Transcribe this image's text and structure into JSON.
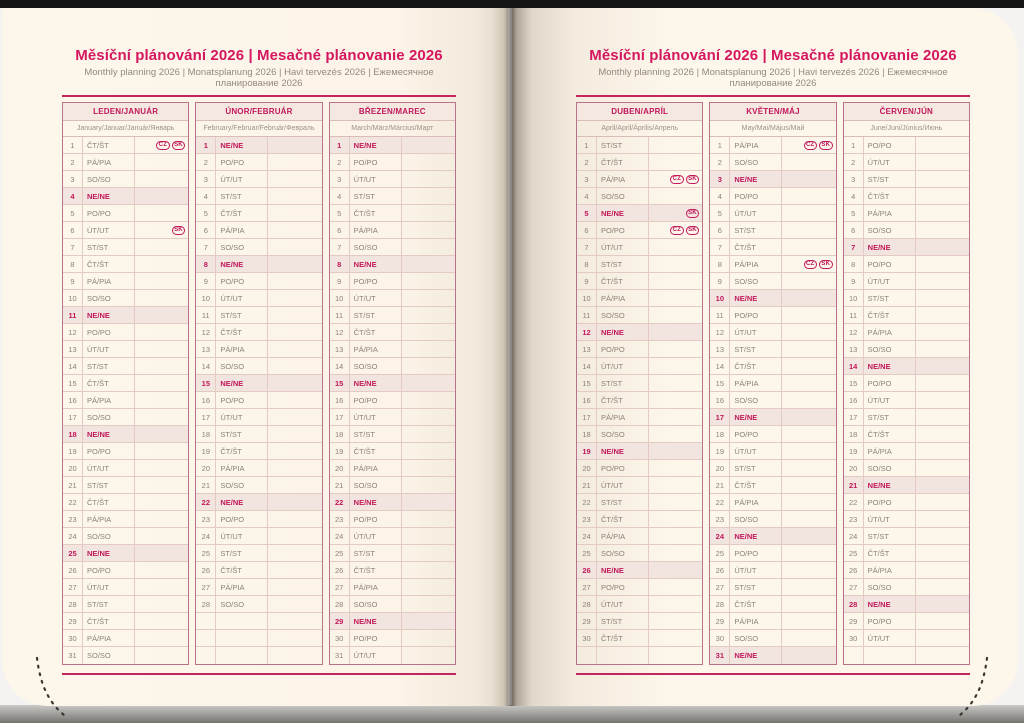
{
  "header": {
    "title": "Měsíční plánování 2026 | Mesačné plánovanie 2026",
    "subtitle": "Monthly planning 2026 | Monatsplanung 2026 | Havi tervezés 2026 | Ежемесячное планирование 2026"
  },
  "colors": {
    "accent": "#c2185b",
    "title": "#d4175f",
    "rule": "#c3255e",
    "sunday_row_bg": "#f2e4df",
    "header_band_bg": "#f4e8e1",
    "page_bg": "#fdf6ea",
    "day_text": "#8c8376"
  },
  "weekday_labels": [
    "PO/PO",
    "ÚT/UT",
    "ST/ST",
    "ČT/ŠT",
    "PÁ/PIA",
    "SO/SO",
    "NE/NE"
  ],
  "holiday_badges": [
    "CZ",
    "SK"
  ],
  "months": [
    {
      "id": "leden-januar",
      "name": "LEDEN/JANUÁR",
      "subtitle": "January/Januar/Január/Январь",
      "trailing_empty": 0,
      "days": [
        [
          1,
          "ČT/ŠT",
          [
            "CZ",
            "SK"
          ]
        ],
        [
          2,
          "PÁ/PIA"
        ],
        [
          3,
          "SO/SO"
        ],
        [
          4,
          "NE/NE"
        ],
        [
          5,
          "PO/PO"
        ],
        [
          6,
          "ÚT/UT",
          [
            "SK"
          ]
        ],
        [
          7,
          "ST/ST"
        ],
        [
          8,
          "ČT/ŠT"
        ],
        [
          9,
          "PÁ/PIA"
        ],
        [
          10,
          "SO/SO"
        ],
        [
          11,
          "NE/NE"
        ],
        [
          12,
          "PO/PO"
        ],
        [
          13,
          "ÚT/UT"
        ],
        [
          14,
          "ST/ST"
        ],
        [
          15,
          "ČT/ŠT"
        ],
        [
          16,
          "PÁ/PIA"
        ],
        [
          17,
          "SO/SO"
        ],
        [
          18,
          "NE/NE"
        ],
        [
          19,
          "PO/PO"
        ],
        [
          20,
          "ÚT/UT"
        ],
        [
          21,
          "ST/ST"
        ],
        [
          22,
          "ČT/ŠT"
        ],
        [
          23,
          "PÁ/PIA"
        ],
        [
          24,
          "SO/SO"
        ],
        [
          25,
          "NE/NE"
        ],
        [
          26,
          "PO/PO"
        ],
        [
          27,
          "ÚT/UT"
        ],
        [
          28,
          "ST/ST"
        ],
        [
          29,
          "ČT/ŠT"
        ],
        [
          30,
          "PÁ/PIA"
        ],
        [
          31,
          "SO/SO"
        ]
      ]
    },
    {
      "id": "unor-februar",
      "name": "ÚNOR/FEBRUÁR",
      "subtitle": "February/Februar/Február/Февраль",
      "trailing_empty": 3,
      "days": [
        [
          1,
          "NE/NE"
        ],
        [
          2,
          "PO/PO"
        ],
        [
          3,
          "ÚT/UT"
        ],
        [
          4,
          "ST/ST"
        ],
        [
          5,
          "ČT/ŠT"
        ],
        [
          6,
          "PÁ/PIA"
        ],
        [
          7,
          "SO/SO"
        ],
        [
          8,
          "NE/NE"
        ],
        [
          9,
          "PO/PO"
        ],
        [
          10,
          "ÚT/UT"
        ],
        [
          11,
          "ST/ST"
        ],
        [
          12,
          "ČT/ŠT"
        ],
        [
          13,
          "PÁ/PIA"
        ],
        [
          14,
          "SO/SO"
        ],
        [
          15,
          "NE/NE"
        ],
        [
          16,
          "PO/PO"
        ],
        [
          17,
          "ÚT/UT"
        ],
        [
          18,
          "ST/ST"
        ],
        [
          19,
          "ČT/ŠT"
        ],
        [
          20,
          "PÁ/PIA"
        ],
        [
          21,
          "SO/SO"
        ],
        [
          22,
          "NE/NE"
        ],
        [
          23,
          "PO/PO"
        ],
        [
          24,
          "ÚT/UT"
        ],
        [
          25,
          "ST/ST"
        ],
        [
          26,
          "ČT/ŠT"
        ],
        [
          27,
          "PÁ/PIA"
        ],
        [
          28,
          "SO/SO"
        ]
      ]
    },
    {
      "id": "brezen-marec",
      "name": "BŘEZEN/MAREC",
      "subtitle": "March/März/Március/Март",
      "trailing_empty": 0,
      "days": [
        [
          1,
          "NE/NE"
        ],
        [
          2,
          "PO/PO"
        ],
        [
          3,
          "ÚT/UT"
        ],
        [
          4,
          "ST/ST"
        ],
        [
          5,
          "ČT/ŠT"
        ],
        [
          6,
          "PÁ/PIA"
        ],
        [
          7,
          "SO/SO"
        ],
        [
          8,
          "NE/NE"
        ],
        [
          9,
          "PO/PO"
        ],
        [
          10,
          "ÚT/UT"
        ],
        [
          11,
          "ST/ST"
        ],
        [
          12,
          "ČT/ŠT"
        ],
        [
          13,
          "PÁ/PIA"
        ],
        [
          14,
          "SO/SO"
        ],
        [
          15,
          "NE/NE"
        ],
        [
          16,
          "PO/PO"
        ],
        [
          17,
          "ÚT/UT"
        ],
        [
          18,
          "ST/ST"
        ],
        [
          19,
          "ČT/ŠT"
        ],
        [
          20,
          "PÁ/PIA"
        ],
        [
          21,
          "SO/SO"
        ],
        [
          22,
          "NE/NE"
        ],
        [
          23,
          "PO/PO"
        ],
        [
          24,
          "ÚT/UT"
        ],
        [
          25,
          "ST/ST"
        ],
        [
          26,
          "ČT/ŠT"
        ],
        [
          27,
          "PÁ/PIA"
        ],
        [
          28,
          "SO/SO"
        ],
        [
          29,
          "NE/NE"
        ],
        [
          30,
          "PO/PO"
        ],
        [
          31,
          "ÚT/UT"
        ]
      ]
    },
    {
      "id": "duben-april",
      "name": "DUBEN/APRÍL",
      "subtitle": "April/April/Április/Апрель",
      "trailing_empty": 1,
      "days": [
        [
          1,
          "ST/ST"
        ],
        [
          2,
          "ČT/ŠT"
        ],
        [
          3,
          "PÁ/PIA",
          [
            "CZ",
            "SK"
          ]
        ],
        [
          4,
          "SO/SO"
        ],
        [
          5,
          "NE/NE",
          [
            "SK"
          ]
        ],
        [
          6,
          "PO/PO",
          [
            "CZ",
            "SK"
          ]
        ],
        [
          7,
          "ÚT/UT"
        ],
        [
          8,
          "ST/ST"
        ],
        [
          9,
          "ČT/ŠT"
        ],
        [
          10,
          "PÁ/PIA"
        ],
        [
          11,
          "SO/SO"
        ],
        [
          12,
          "NE/NE"
        ],
        [
          13,
          "PO/PO"
        ],
        [
          14,
          "ÚT/UT"
        ],
        [
          15,
          "ST/ST"
        ],
        [
          16,
          "ČT/ŠT"
        ],
        [
          17,
          "PÁ/PIA"
        ],
        [
          18,
          "SO/SO"
        ],
        [
          19,
          "NE/NE"
        ],
        [
          20,
          "PO/PO"
        ],
        [
          21,
          "ÚT/UT"
        ],
        [
          22,
          "ST/ST"
        ],
        [
          23,
          "ČT/ŠT"
        ],
        [
          24,
          "PÁ/PIA"
        ],
        [
          25,
          "SO/SO"
        ],
        [
          26,
          "NE/NE"
        ],
        [
          27,
          "PO/PO"
        ],
        [
          28,
          "ÚT/UT"
        ],
        [
          29,
          "ST/ST"
        ],
        [
          30,
          "ČT/ŠT"
        ]
      ]
    },
    {
      "id": "kveten-maj",
      "name": "KVĚTEN/MÁJ",
      "subtitle": "May/Mai/Május/Май",
      "trailing_empty": 0,
      "days": [
        [
          1,
          "PÁ/PIA",
          [
            "CZ",
            "SK"
          ]
        ],
        [
          2,
          "SO/SO"
        ],
        [
          3,
          "NE/NE"
        ],
        [
          4,
          "PO/PO"
        ],
        [
          5,
          "ÚT/UT"
        ],
        [
          6,
          "ST/ST"
        ],
        [
          7,
          "ČT/ŠT"
        ],
        [
          8,
          "PÁ/PIA",
          [
            "CZ",
            "SK"
          ]
        ],
        [
          9,
          "SO/SO"
        ],
        [
          10,
          "NE/NE"
        ],
        [
          11,
          "PO/PO"
        ],
        [
          12,
          "ÚT/UT"
        ],
        [
          13,
          "ST/ST"
        ],
        [
          14,
          "ČT/ŠT"
        ],
        [
          15,
          "PÁ/PIA"
        ],
        [
          16,
          "SO/SO"
        ],
        [
          17,
          "NE/NE"
        ],
        [
          18,
          "PO/PO"
        ],
        [
          19,
          "ÚT/UT"
        ],
        [
          20,
          "ST/ST"
        ],
        [
          21,
          "ČT/ŠT"
        ],
        [
          22,
          "PÁ/PIA"
        ],
        [
          23,
          "SO/SO"
        ],
        [
          24,
          "NE/NE"
        ],
        [
          25,
          "PO/PO"
        ],
        [
          26,
          "ÚT/UT"
        ],
        [
          27,
          "ST/ST"
        ],
        [
          28,
          "ČT/ŠT"
        ],
        [
          29,
          "PÁ/PIA"
        ],
        [
          30,
          "SO/SO"
        ],
        [
          31,
          "NE/NE"
        ]
      ]
    },
    {
      "id": "cerven-jun",
      "name": "ČERVEN/JÚN",
      "subtitle": "June/Juni/Június/Июнь",
      "trailing_empty": 1,
      "days": [
        [
          1,
          "PO/PO"
        ],
        [
          2,
          "ÚT/UT"
        ],
        [
          3,
          "ST/ST"
        ],
        [
          4,
          "ČT/ŠT"
        ],
        [
          5,
          "PÁ/PIA"
        ],
        [
          6,
          "SO/SO"
        ],
        [
          7,
          "NE/NE"
        ],
        [
          8,
          "PO/PO"
        ],
        [
          9,
          "ÚT/UT"
        ],
        [
          10,
          "ST/ST"
        ],
        [
          11,
          "ČT/ŠT"
        ],
        [
          12,
          "PÁ/PIA"
        ],
        [
          13,
          "SO/SO"
        ],
        [
          14,
          "NE/NE"
        ],
        [
          15,
          "PO/PO"
        ],
        [
          16,
          "ÚT/UT"
        ],
        [
          17,
          "ST/ST"
        ],
        [
          18,
          "ČT/ŠT"
        ],
        [
          19,
          "PÁ/PIA"
        ],
        [
          20,
          "SO/SO"
        ],
        [
          21,
          "NE/NE"
        ],
        [
          22,
          "PO/PO"
        ],
        [
          23,
          "ÚT/UT"
        ],
        [
          24,
          "ST/ST"
        ],
        [
          25,
          "ČT/ŠT"
        ],
        [
          26,
          "PÁ/PIA"
        ],
        [
          27,
          "SO/SO"
        ],
        [
          28,
          "NE/NE"
        ],
        [
          29,
          "PO/PO"
        ],
        [
          30,
          "ÚT/UT"
        ]
      ]
    }
  ]
}
